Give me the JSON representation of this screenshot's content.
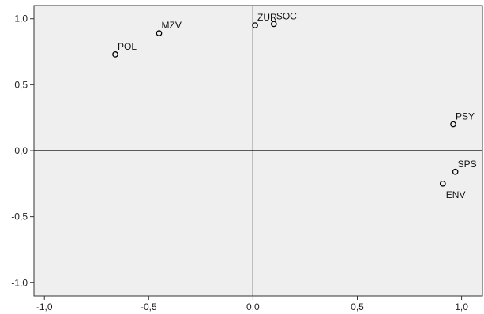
{
  "chart_data": {
    "type": "scatter",
    "title": "",
    "xlabel": "",
    "ylabel": "",
    "xlim": [
      -1.05,
      1.1
    ],
    "ylim": [
      -1.1,
      1.1
    ],
    "grid": false,
    "reference_lines": {
      "x": 0.0,
      "y": 0.0
    },
    "x_ticks": [
      {
        "value": -1.0,
        "label": "-1,0"
      },
      {
        "value": -0.5,
        "label": "-0,5"
      },
      {
        "value": 0.0,
        "label": "0,0"
      },
      {
        "value": 0.5,
        "label": "0,5"
      },
      {
        "value": 1.0,
        "label": "1,0"
      }
    ],
    "y_ticks": [
      {
        "value": 1.0,
        "label": "1,0"
      },
      {
        "value": 0.5,
        "label": "0,5"
      },
      {
        "value": 0.0,
        "label": "0,0"
      },
      {
        "value": -0.5,
        "label": "-0,5"
      },
      {
        "value": -1.0,
        "label": "-1,0"
      }
    ],
    "points": [
      {
        "label": "MZV",
        "x": -0.45,
        "y": 0.89
      },
      {
        "label": "POL",
        "x": -0.66,
        "y": 0.73
      },
      {
        "label": "ZUR",
        "x": 0.01,
        "y": 0.95
      },
      {
        "label": "SOC",
        "x": 0.1,
        "y": 0.96
      },
      {
        "label": "PSY",
        "x": 0.96,
        "y": 0.2
      },
      {
        "label": "SPS",
        "x": 0.97,
        "y": -0.16
      },
      {
        "label": "ENV",
        "x": 0.91,
        "y": -0.25
      }
    ],
    "colors": {
      "plot_background": "#efefef",
      "frame": "#333333",
      "axis_line": "#000000",
      "marker": "#000000"
    }
  }
}
